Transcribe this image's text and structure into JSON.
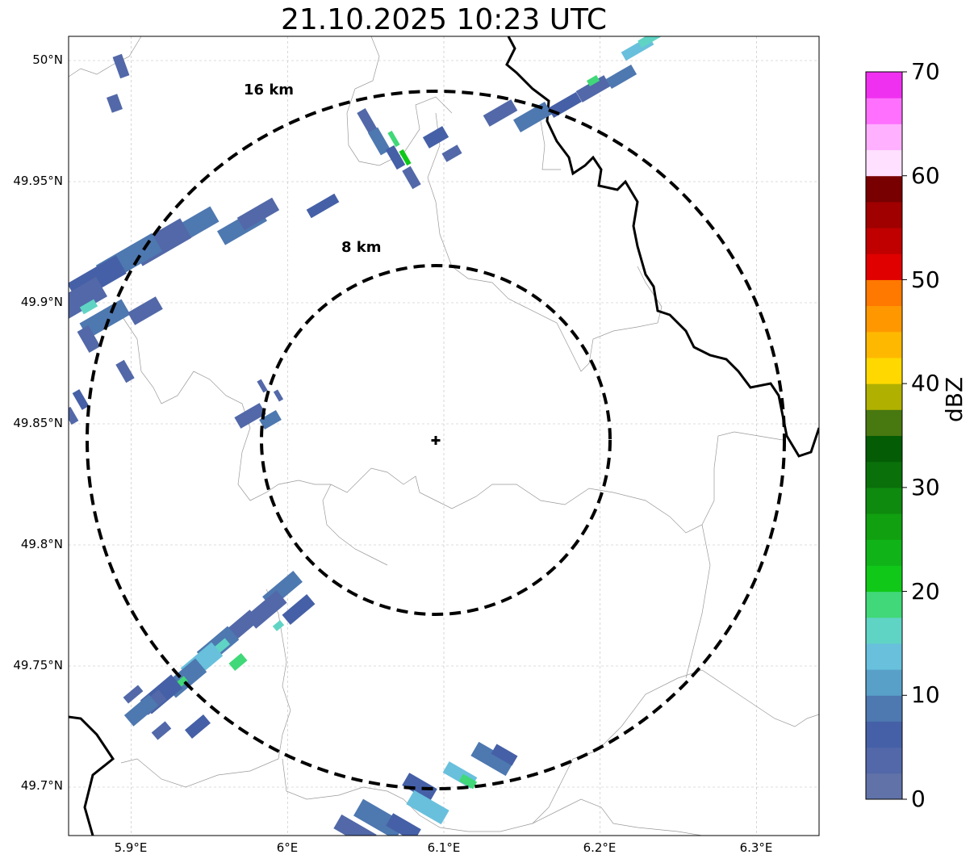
{
  "title": "21.10.2025 10:23 UTC",
  "map": {
    "lon_range": [
      5.86,
      6.34
    ],
    "lat_range": [
      49.68,
      50.01
    ],
    "x_ticks": [
      "5.9°E",
      "6°E",
      "6.1°E",
      "6.2°E",
      "6.3°E"
    ],
    "x_tick_values": [
      5.9,
      6.0,
      6.1,
      6.2,
      6.3
    ],
    "y_ticks": [
      "50°N",
      "49.95°N",
      "49.9°N",
      "49.85°N",
      "49.8°N",
      "49.75°N",
      "49.7°N"
    ],
    "y_tick_values": [
      50.0,
      49.95,
      49.9,
      49.85,
      49.8,
      49.75,
      49.7
    ],
    "gridlines": true,
    "center": {
      "lon": 6.094,
      "lat": 49.843,
      "marker": "plus-icon"
    },
    "range_rings": [
      {
        "label": "8 km",
        "radius_km": 8
      },
      {
        "label": "16 km",
        "radius_km": 16
      }
    ]
  },
  "colorbar": {
    "label": "dBZ",
    "min": 0,
    "max": 70,
    "ticks": [
      "0",
      "10",
      "20",
      "30",
      "40",
      "50",
      "60",
      "70"
    ],
    "colors": [
      "#6072a8",
      "#5268a8",
      "#4560a6",
      "#4e78b0",
      "#58a0c8",
      "#68c0dc",
      "#60d4c4",
      "#40d878",
      "#10c818",
      "#10b418",
      "#10a010",
      "#0e8a0e",
      "#0a700a",
      "#045c04",
      "#487810",
      "#b0b000",
      "#ffd800",
      "#ffb800",
      "#ff9800",
      "#ff7800",
      "#e00000",
      "#c00000",
      "#a00000",
      "#780000",
      "#ffe0ff",
      "#ffb0ff",
      "#ff70ff",
      "#f030f0"
    ]
  }
}
